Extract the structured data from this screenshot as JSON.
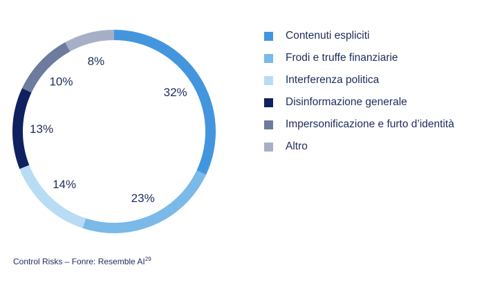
{
  "chart_data": {
    "type": "pie",
    "donut": true,
    "title": "",
    "categories": [
      "Contenuti espliciti",
      "Frodi e truffe finanziarie",
      "Interferenza politica",
      "Disinformazione generale",
      "Impersonificazione e furto d’identità",
      "Altro"
    ],
    "values": [
      32,
      23,
      14,
      13,
      10,
      8
    ],
    "labels": [
      "32%",
      "23%",
      "14%",
      "13%",
      "10%",
      "8%"
    ],
    "colors": [
      "#4396de",
      "#7ab9e8",
      "#b8dcf3",
      "#0f2161",
      "#6c7b9e",
      "#a6afc6"
    ],
    "legend_position": "right"
  },
  "source": {
    "text": "Control Risks – Fonre: Resemble AI",
    "footnote": "29"
  }
}
